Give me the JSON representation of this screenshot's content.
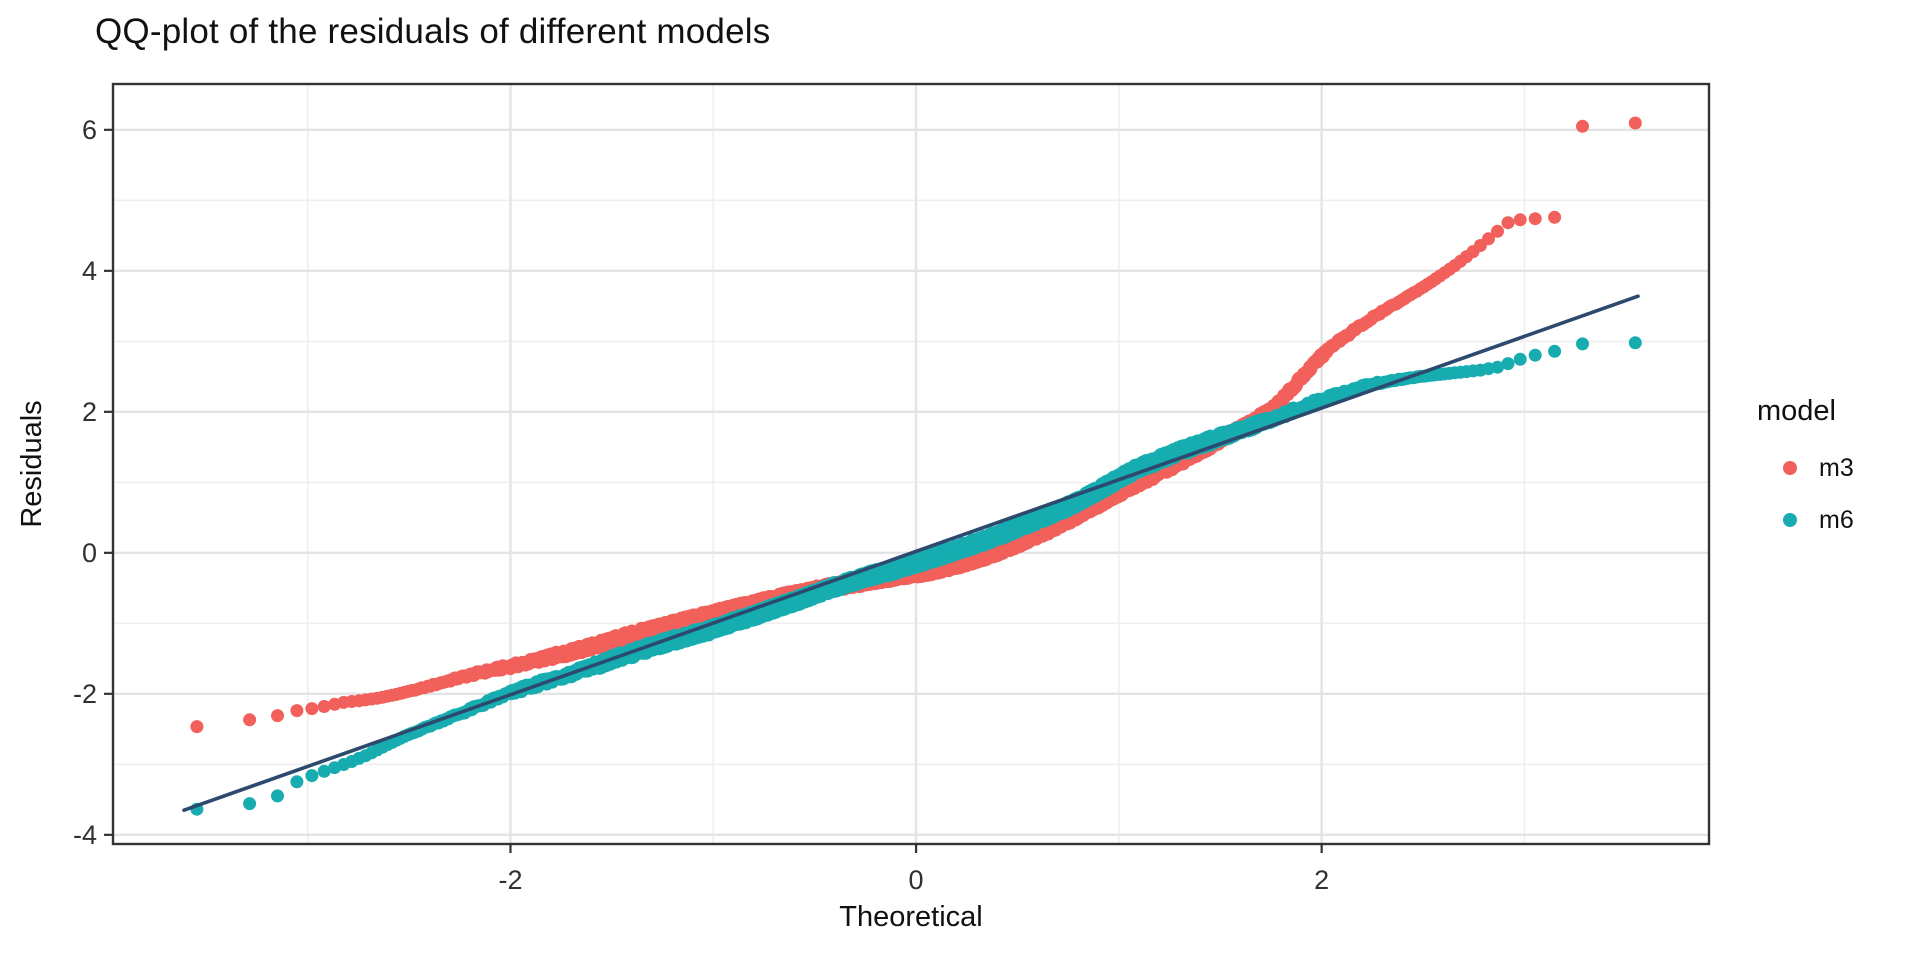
{
  "chart_data": {
    "type": "scatter",
    "subtype": "qq-plot",
    "title": "QQ-plot of the residuals of different models",
    "xlabel": "Theoretical",
    "ylabel": "Residuals",
    "xlim": [
      -3.96,
      3.91
    ],
    "ylim": [
      -4.13,
      6.65
    ],
    "x_major_ticks": [
      -2,
      0,
      2
    ],
    "x_minor_ticks": [
      -3,
      -1,
      1,
      3
    ],
    "y_major_ticks": [
      -4,
      -2,
      0,
      2,
      4,
      6
    ],
    "y_minor_ticks": [
      -3,
      -1,
      1,
      3,
      5
    ],
    "grid": "major+minor, light gray on white panel",
    "legend": {
      "title": "model",
      "position": "right",
      "entries": [
        {
          "label": "m3",
          "color": "#F2605B"
        },
        {
          "label": "m6",
          "color": "#17ADB0"
        }
      ]
    },
    "qq_line": {
      "color": "#2C4A6E",
      "x1": -3.61,
      "y1": -3.65,
      "x2": 3.56,
      "y2": 3.64
    },
    "series": [
      {
        "name": "m3",
        "color": "#F2605B",
        "n_points": 3200,
        "quantile_curve": [
          [
            -3.56,
            -2.47
          ],
          [
            -3.29,
            -2.37
          ],
          [
            -3.15,
            -2.31
          ],
          [
            -3.06,
            -2.24
          ],
          [
            -2.98,
            -2.21
          ],
          [
            -2.92,
            -2.18
          ],
          [
            -2.87,
            -2.15
          ],
          [
            -2.82,
            -2.12
          ],
          [
            -2.75,
            -2.1
          ],
          [
            -2.65,
            -2.06
          ],
          [
            -2.55,
            -2.0
          ],
          [
            -2.45,
            -1.93
          ],
          [
            -2.35,
            -1.85
          ],
          [
            -2.25,
            -1.77
          ],
          [
            -2.15,
            -1.7
          ],
          [
            -2.05,
            -1.64
          ],
          [
            -1.95,
            -1.58
          ],
          [
            -1.85,
            -1.51
          ],
          [
            -1.75,
            -1.44
          ],
          [
            -1.65,
            -1.37
          ],
          [
            -1.55,
            -1.29
          ],
          [
            -1.45,
            -1.21
          ],
          [
            -1.35,
            -1.13
          ],
          [
            -1.25,
            -1.06
          ],
          [
            -1.15,
            -0.98
          ],
          [
            -1.05,
            -0.91
          ],
          [
            -0.95,
            -0.84
          ],
          [
            -0.85,
            -0.77
          ],
          [
            -0.75,
            -0.7
          ],
          [
            -0.65,
            -0.63
          ],
          [
            -0.55,
            -0.57
          ],
          [
            -0.45,
            -0.51
          ],
          [
            -0.35,
            -0.45
          ],
          [
            -0.25,
            -0.4
          ],
          [
            -0.15,
            -0.35
          ],
          [
            -0.05,
            -0.31
          ],
          [
            0.05,
            -0.26
          ],
          [
            0.15,
            -0.2
          ],
          [
            0.25,
            -0.12
          ],
          [
            0.35,
            -0.03
          ],
          [
            0.45,
            0.08
          ],
          [
            0.55,
            0.2
          ],
          [
            0.65,
            0.33
          ],
          [
            0.75,
            0.47
          ],
          [
            0.85,
            0.62
          ],
          [
            0.95,
            0.78
          ],
          [
            1.05,
            0.94
          ],
          [
            1.15,
            1.08
          ],
          [
            1.25,
            1.22
          ],
          [
            1.35,
            1.38
          ],
          [
            1.45,
            1.53
          ],
          [
            1.55,
            1.68
          ],
          [
            1.65,
            1.84
          ],
          [
            1.75,
            2.02
          ],
          [
            1.85,
            2.32
          ],
          [
            1.95,
            2.64
          ],
          [
            2.05,
            2.94
          ],
          [
            2.15,
            3.14
          ],
          [
            2.25,
            3.33
          ],
          [
            2.35,
            3.51
          ],
          [
            2.45,
            3.68
          ],
          [
            2.55,
            3.86
          ],
          [
            2.65,
            4.06
          ],
          [
            2.75,
            4.28
          ],
          [
            2.85,
            4.52
          ],
          [
            2.93,
            4.71
          ],
          [
            3.0,
            4.73
          ],
          [
            3.06,
            4.74
          ],
          [
            3.15,
            4.76
          ],
          [
            3.2,
            6.04
          ],
          [
            3.29,
            6.05
          ],
          [
            3.56,
            6.1
          ]
        ]
      },
      {
        "name": "m6",
        "color": "#17ADB0",
        "n_points": 3200,
        "quantile_curve": [
          [
            -3.56,
            -3.64
          ],
          [
            -3.29,
            -3.56
          ],
          [
            -3.15,
            -3.45
          ],
          [
            -3.04,
            -3.22
          ],
          [
            -2.98,
            -3.16
          ],
          [
            -2.92,
            -3.1
          ],
          [
            -2.87,
            -3.05
          ],
          [
            -2.8,
            -2.98
          ],
          [
            -2.7,
            -2.86
          ],
          [
            -2.62,
            -2.74
          ],
          [
            -2.52,
            -2.6
          ],
          [
            -2.42,
            -2.48
          ],
          [
            -2.32,
            -2.36
          ],
          [
            -2.22,
            -2.25
          ],
          [
            -2.12,
            -2.13
          ],
          [
            -2.02,
            -2.01
          ],
          [
            -1.92,
            -1.91
          ],
          [
            -1.82,
            -1.82
          ],
          [
            -1.72,
            -1.73
          ],
          [
            -1.62,
            -1.64
          ],
          [
            -1.52,
            -1.54
          ],
          [
            -1.42,
            -1.44
          ],
          [
            -1.32,
            -1.35
          ],
          [
            -1.22,
            -1.26
          ],
          [
            -1.12,
            -1.18
          ],
          [
            -1.02,
            -1.1
          ],
          [
            -0.92,
            -1.0
          ],
          [
            -0.82,
            -0.91
          ],
          [
            -0.72,
            -0.81
          ],
          [
            -0.62,
            -0.71
          ],
          [
            -0.52,
            -0.61
          ],
          [
            -0.42,
            -0.5
          ],
          [
            -0.32,
            -0.41
          ],
          [
            -0.22,
            -0.32
          ],
          [
            -0.12,
            -0.25
          ],
          [
            -0.02,
            -0.16
          ],
          [
            0.08,
            -0.07
          ],
          [
            0.18,
            0.02
          ],
          [
            0.28,
            0.12
          ],
          [
            0.38,
            0.22
          ],
          [
            0.48,
            0.33
          ],
          [
            0.58,
            0.45
          ],
          [
            0.68,
            0.57
          ],
          [
            0.78,
            0.7
          ],
          [
            0.88,
            0.85
          ],
          [
            0.98,
            1.02
          ],
          [
            1.08,
            1.18
          ],
          [
            1.18,
            1.3
          ],
          [
            1.28,
            1.42
          ],
          [
            1.38,
            1.52
          ],
          [
            1.48,
            1.62
          ],
          [
            1.58,
            1.72
          ],
          [
            1.68,
            1.82
          ],
          [
            1.78,
            1.93
          ],
          [
            1.88,
            2.04
          ],
          [
            1.98,
            2.15
          ],
          [
            2.08,
            2.25
          ],
          [
            2.18,
            2.34
          ],
          [
            2.28,
            2.41
          ],
          [
            2.38,
            2.46
          ],
          [
            2.48,
            2.5
          ],
          [
            2.58,
            2.53
          ],
          [
            2.68,
            2.56
          ],
          [
            2.78,
            2.59
          ],
          [
            2.88,
            2.64
          ],
          [
            2.95,
            2.72
          ],
          [
            3.03,
            2.79
          ],
          [
            3.15,
            2.86
          ],
          [
            3.23,
            2.96
          ],
          [
            3.56,
            2.98
          ]
        ]
      }
    ]
  }
}
